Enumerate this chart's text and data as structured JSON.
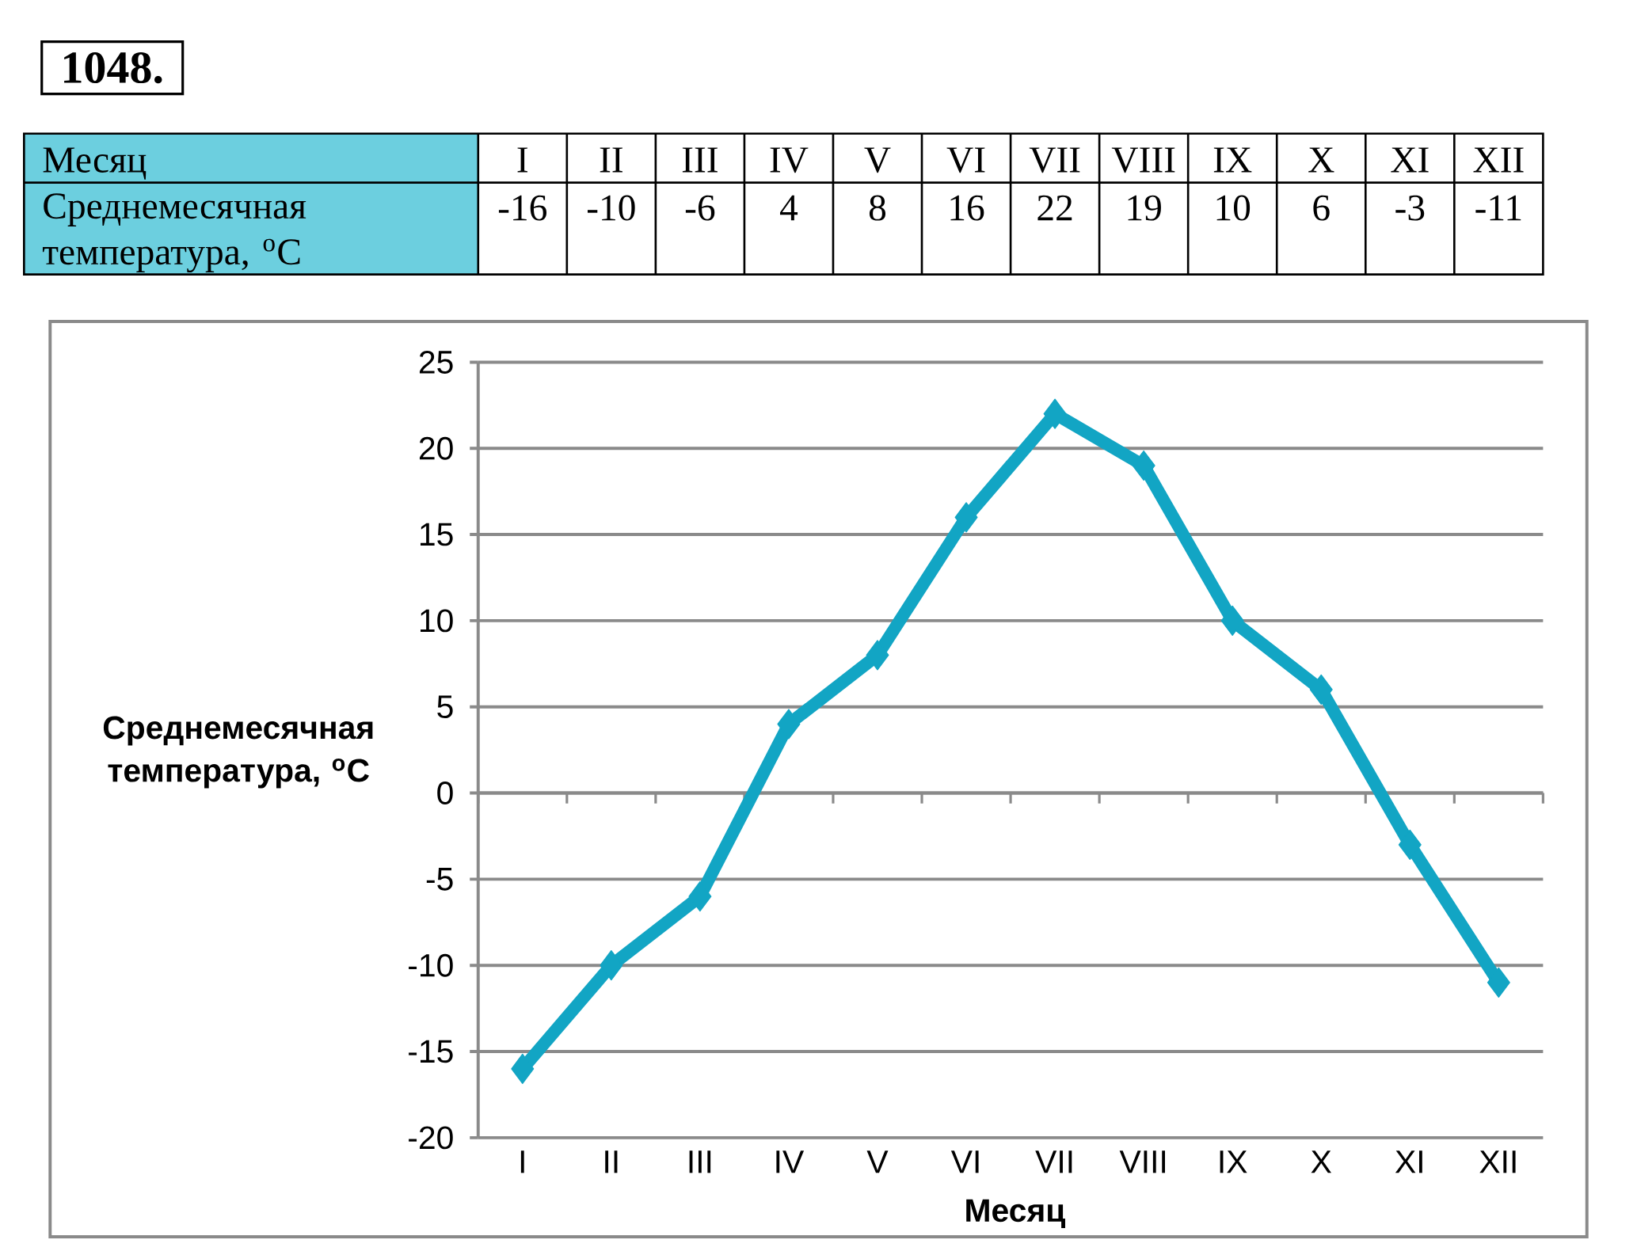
{
  "chart_data": {
    "type": "line",
    "title": "1048.",
    "xlabel": "Месяц",
    "ylabel": "Среднемесячная температура, $^{o}$C",
    "categories": [
      "I",
      "II",
      "III",
      "IV",
      "V",
      "VI",
      "VII",
      "VIII",
      "IX",
      "X",
      "XI",
      "XII"
    ],
    "values": [
      -16,
      -10,
      -6,
      4,
      8,
      16,
      22,
      19,
      10,
      6,
      -3,
      -11
    ],
    "color": "#12a5c4",
    "ylim": [
      -20,
      25
    ],
    "yticks": [
      -20,
      -15,
      -10,
      -5,
      0,
      5,
      10,
      15,
      20,
      25
    ],
    "grid": "y",
    "marker": "diamond",
    "line_style": "solid",
    "data_labels": true
  }
}
